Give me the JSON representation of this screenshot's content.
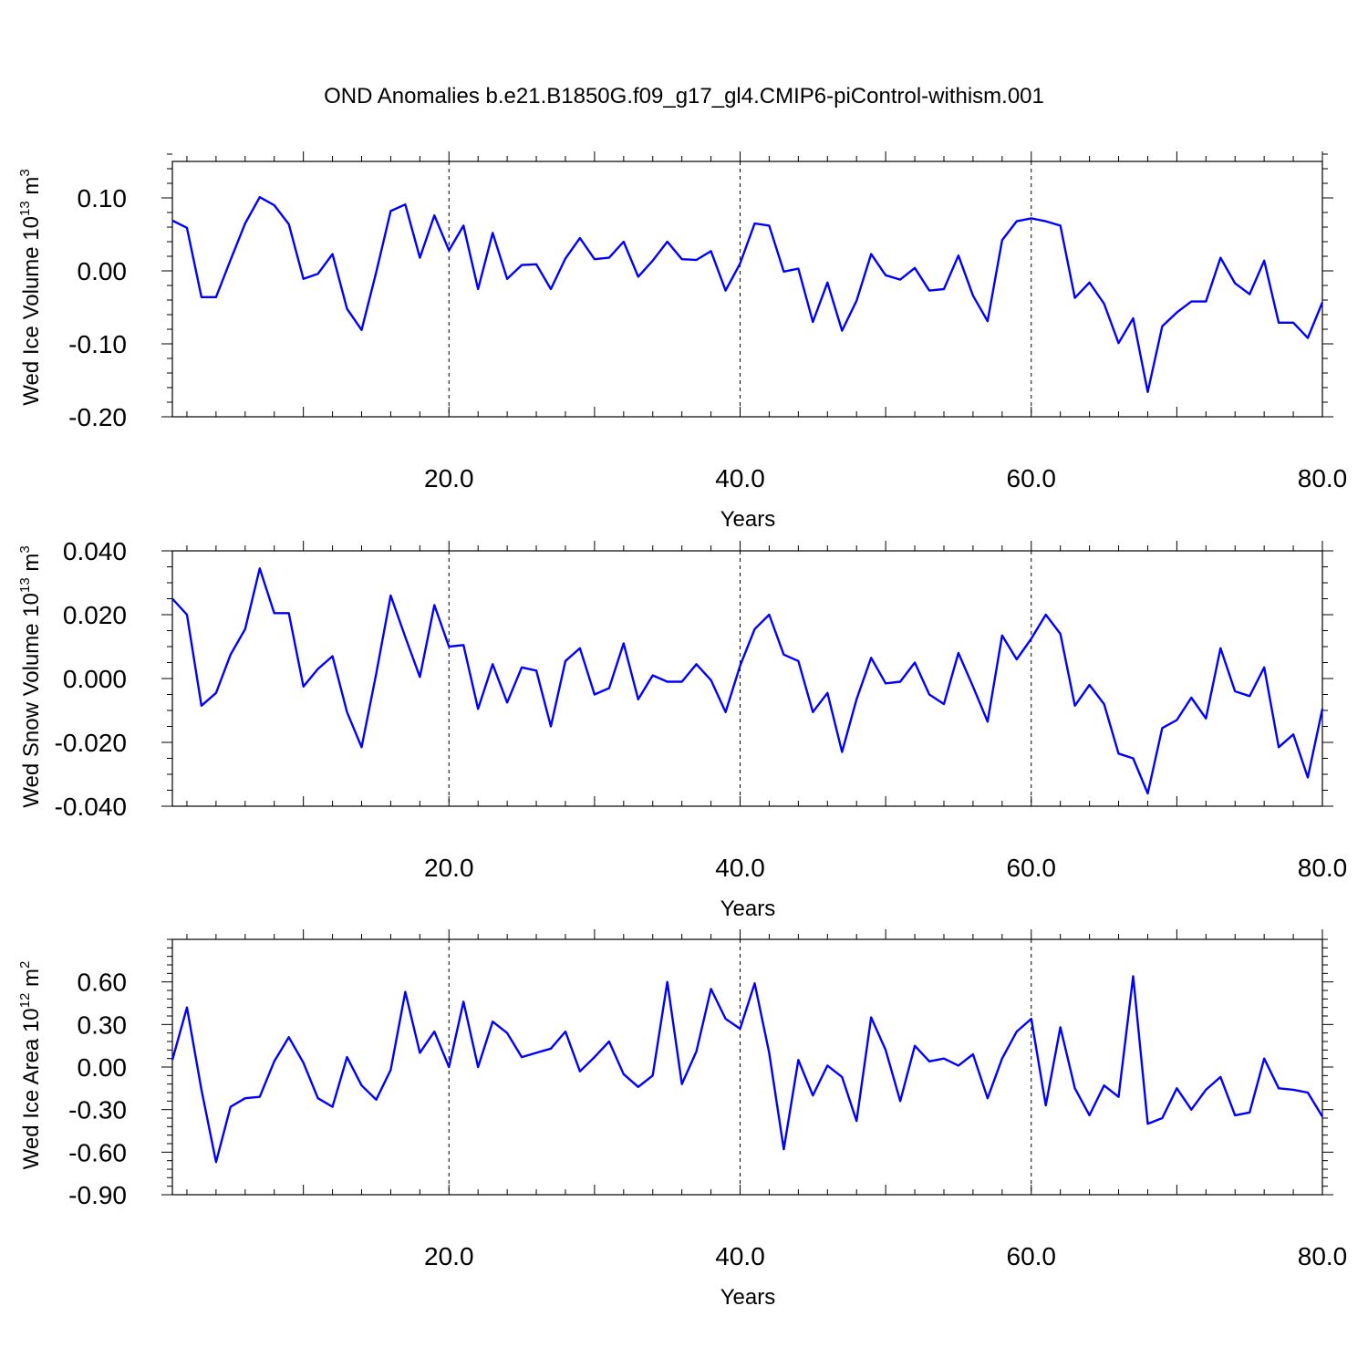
{
  "title": "OND Anomalies b.e21.B1850G.f09_g17_gl4.CMIP6-piControl-withism.001",
  "line_color": "#0000ff",
  "chart_data": [
    {
      "type": "line",
      "ylabel": "Wed Ice Volume",
      "ylabel_unit": "10",
      "ylabel_exp": "13",
      "ylabel_unit_tail": "m",
      "ylabel_unit_exp": "3",
      "xlabel": "Years",
      "xlim": [
        1,
        80
      ],
      "ylim": [
        -0.2,
        0.15
      ],
      "xticks": [
        "20.0",
        "40.0",
        "60.0",
        "80.0"
      ],
      "yticks": [
        "0.10",
        "0.00",
        "-0.10",
        "-0.20"
      ],
      "grid": "dashed vertical lines at x = 20, 40, 60",
      "series": [
        {
          "x": [
            1,
            2,
            3,
            4,
            5,
            6,
            7,
            8,
            9,
            10,
            11,
            12,
            13,
            14,
            15,
            16,
            17,
            18,
            19,
            20,
            21,
            22,
            23,
            24,
            25,
            26,
            27,
            28,
            29,
            30,
            31,
            32,
            33,
            34,
            35,
            36,
            37,
            38,
            39,
            40,
            41,
            42,
            43,
            44,
            45,
            46,
            47,
            48,
            49,
            50,
            51,
            52,
            53,
            54,
            55,
            56,
            57,
            58,
            59,
            60,
            61,
            62,
            63,
            64,
            65,
            66,
            67,
            68,
            69,
            70,
            71,
            72,
            73,
            74,
            75,
            76,
            77,
            78,
            79,
            80
          ],
          "values": [
            0.069,
            0.059,
            -0.036,
            -0.036,
            0.015,
            0.065,
            0.101,
            0.09,
            0.064,
            -0.011,
            -0.004,
            0.023,
            -0.052,
            -0.081,
            -0.002,
            0.082,
            0.091,
            0.018,
            0.076,
            0.028,
            0.062,
            -0.025,
            0.052,
            -0.011,
            0.008,
            0.009,
            -0.025,
            0.017,
            0.045,
            0.016,
            0.018,
            0.04,
            -0.008,
            0.014,
            0.04,
            0.016,
            0.015,
            0.027,
            -0.027,
            0.01,
            0.065,
            0.062,
            -0.001,
            0.003,
            -0.07,
            -0.016,
            -0.082,
            -0.041,
            0.023,
            -0.006,
            -0.012,
            0.004,
            -0.027,
            -0.025,
            0.021,
            -0.034,
            -0.069,
            0.042,
            0.068,
            0.072,
            0.068,
            0.062,
            -0.037,
            -0.016,
            -0.045,
            -0.099,
            -0.065,
            -0.166,
            -0.076,
            -0.057,
            -0.042,
            -0.042,
            0.018,
            -0.017,
            -0.032,
            0.014,
            -0.071,
            -0.071,
            -0.092,
            -0.043
          ]
        }
      ]
    },
    {
      "type": "line",
      "ylabel": "Wed Snow Volume",
      "ylabel_unit": "10",
      "ylabel_exp": "13",
      "ylabel_unit_tail": "m",
      "ylabel_unit_exp": "3",
      "xlabel": "Years",
      "xlim": [
        1,
        80
      ],
      "ylim": [
        -0.04,
        0.04
      ],
      "xticks": [
        "20.0",
        "40.0",
        "60.0",
        "80.0"
      ],
      "yticks": [
        "0.040",
        "0.020",
        "0.000",
        "-0.020",
        "-0.040"
      ],
      "grid": "dashed vertical lines at x = 20, 40, 60",
      "series": [
        {
          "x": [
            1,
            2,
            3,
            4,
            5,
            6,
            7,
            8,
            9,
            10,
            11,
            12,
            13,
            14,
            15,
            16,
            17,
            18,
            19,
            20,
            21,
            22,
            23,
            24,
            25,
            26,
            27,
            28,
            29,
            30,
            31,
            32,
            33,
            34,
            35,
            36,
            37,
            38,
            39,
            40,
            41,
            42,
            43,
            44,
            45,
            46,
            47,
            48,
            49,
            50,
            51,
            52,
            53,
            54,
            55,
            56,
            57,
            58,
            59,
            60,
            61,
            62,
            63,
            64,
            65,
            66,
            67,
            68,
            69,
            70,
            71,
            72,
            73,
            74,
            75,
            76,
            77,
            78,
            79,
            80
          ],
          "values": [
            0.025,
            0.02,
            -0.0085,
            -0.0045,
            0.0075,
            0.0155,
            0.0345,
            0.0205,
            0.0205,
            -0.0025,
            0.003,
            0.007,
            -0.0105,
            -0.0215,
            0.0015,
            0.026,
            0.013,
            0.0005,
            0.023,
            0.01,
            0.0105,
            -0.0095,
            0.0045,
            -0.0075,
            0.0035,
            0.0025,
            -0.015,
            0.0055,
            0.0095,
            -0.005,
            -0.003,
            0.011,
            -0.0065,
            0.001,
            -0.001,
            -0.001,
            0.0045,
            -0.0005,
            -0.0105,
            0.004,
            0.0155,
            0.02,
            0.0075,
            0.0055,
            -0.0105,
            -0.0045,
            -0.023,
            -0.0065,
            0.0065,
            -0.0015,
            -0.001,
            0.005,
            -0.005,
            -0.008,
            0.008,
            -0.0025,
            -0.0135,
            0.0135,
            0.006,
            0.0125,
            0.02,
            0.014,
            -0.0085,
            -0.002,
            -0.008,
            -0.0235,
            -0.025,
            -0.036,
            -0.0155,
            -0.013,
            -0.006,
            -0.0125,
            0.0095,
            -0.004,
            -0.0055,
            0.0035,
            -0.0215,
            -0.0175,
            -0.031,
            -0.0095
          ]
        }
      ]
    },
    {
      "type": "line",
      "ylabel": "Wed Ice Area",
      "ylabel_unit": "10",
      "ylabel_exp": "12",
      "ylabel_unit_tail": "m",
      "ylabel_unit_exp": "2",
      "xlabel": "Years",
      "xlim": [
        1,
        80
      ],
      "ylim": [
        -0.9,
        0.9
      ],
      "xticks": [
        "20.0",
        "40.0",
        "60.0",
        "80.0"
      ],
      "yticks": [
        "0.60",
        "0.30",
        "0.00",
        "-0.30",
        "-0.60",
        "-0.90"
      ],
      "grid": "dashed vertical lines at x = 20, 40, 60",
      "series": [
        {
          "x": [
            1,
            2,
            3,
            4,
            5,
            6,
            7,
            8,
            9,
            10,
            11,
            12,
            13,
            14,
            15,
            16,
            17,
            18,
            19,
            20,
            21,
            22,
            23,
            24,
            25,
            26,
            27,
            28,
            29,
            30,
            31,
            32,
            33,
            34,
            35,
            36,
            37,
            38,
            39,
            40,
            41,
            42,
            43,
            44,
            45,
            46,
            47,
            48,
            49,
            50,
            51,
            52,
            53,
            54,
            55,
            56,
            57,
            58,
            59,
            60,
            61,
            62,
            63,
            64,
            65,
            66,
            67,
            68,
            69,
            70,
            71,
            72,
            73,
            74,
            75,
            76,
            77,
            78,
            79,
            80
          ],
          "values": [
            0.05,
            0.42,
            -0.16,
            -0.67,
            -0.28,
            -0.22,
            -0.21,
            0.04,
            0.21,
            0.03,
            -0.22,
            -0.28,
            0.07,
            -0.13,
            -0.23,
            -0.02,
            0.53,
            0.1,
            0.25,
            0.0,
            0.46,
            0.0,
            0.32,
            0.24,
            0.07,
            0.1,
            0.13,
            0.25,
            -0.03,
            0.07,
            0.18,
            -0.05,
            -0.14,
            -0.06,
            0.6,
            -0.12,
            0.11,
            0.55,
            0.34,
            0.27,
            0.59,
            0.1,
            -0.58,
            0.05,
            -0.2,
            0.01,
            -0.07,
            -0.38,
            0.35,
            0.12,
            -0.24,
            0.15,
            0.04,
            0.06,
            0.01,
            0.09,
            -0.22,
            0.06,
            0.25,
            0.34,
            -0.27,
            0.28,
            -0.15,
            -0.34,
            -0.13,
            -0.21,
            0.64,
            -0.4,
            -0.36,
            -0.15,
            -0.3,
            -0.16,
            -0.07,
            -0.34,
            -0.32,
            0.06,
            -0.15,
            -0.16,
            -0.18,
            -0.35
          ]
        }
      ]
    }
  ]
}
